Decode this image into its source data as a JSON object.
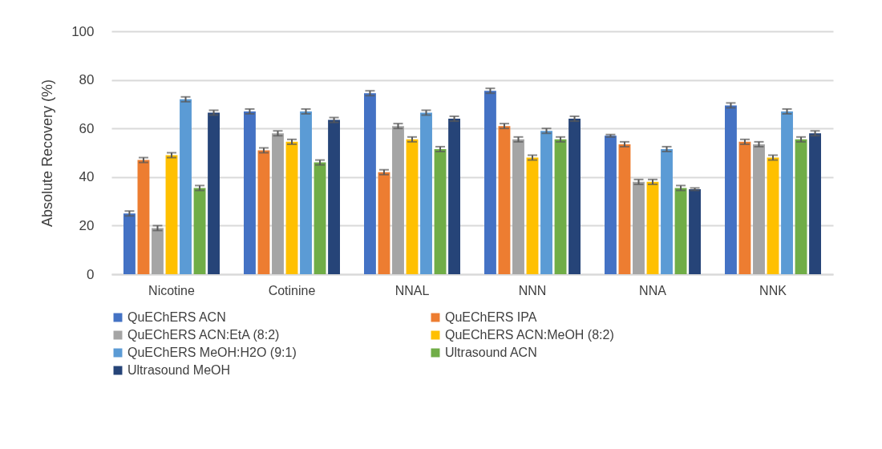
{
  "chart_data": {
    "type": "bar",
    "ylabel": "Absolute Recovery (%)",
    "categories": [
      "Nicotine",
      "Cotinine",
      "NNAL",
      "NNN",
      "NNA",
      "NNK"
    ],
    "ylim": [
      0,
      100
    ],
    "yticks": [
      0,
      20,
      40,
      60,
      80,
      100
    ],
    "grid": "y",
    "legend": "bottom",
    "series": [
      {
        "name": "QuEChERS  ACN",
        "color": "#4472c4",
        "values": [
          25,
          67,
          74.5,
          75.5,
          57,
          69.5
        ],
        "errors": [
          1,
          1,
          1,
          1,
          0.5,
          1
        ]
      },
      {
        "name": "QuEChERS  IPA",
        "color": "#ed7d31",
        "values": [
          47,
          51,
          42,
          61,
          53.5,
          54.5
        ],
        "errors": [
          1,
          1,
          1,
          1,
          1,
          1
        ]
      },
      {
        "name": "QuEChERS  ACN:EtA (8:2)",
        "color": "#a5a5a5",
        "values": [
          19,
          58,
          61,
          55.5,
          38,
          53.5
        ],
        "errors": [
          1,
          1,
          1,
          1,
          1,
          1
        ]
      },
      {
        "name": "QuEChERS  ACN:MeOH (8:2)",
        "color": "#ffc000",
        "values": [
          49,
          54.5,
          55.5,
          48,
          38,
          48
        ],
        "errors": [
          1,
          1,
          1,
          1,
          1,
          1
        ]
      },
      {
        "name": "QuEChERS  MeOH:H2O (9:1)",
        "color": "#5b9bd5",
        "values": [
          72,
          67,
          66.5,
          59,
          51.5,
          67
        ],
        "errors": [
          1,
          1,
          1,
          1,
          1,
          1
        ]
      },
      {
        "name": "Ultrasound  ACN",
        "color": "#70ad47",
        "values": [
          35.5,
          46,
          51.5,
          55.5,
          35.5,
          55.5
        ],
        "errors": [
          1,
          1,
          1,
          1,
          1,
          1
        ]
      },
      {
        "name": "Ultrasound  MeOH",
        "color": "#264478",
        "values": [
          66.5,
          63.5,
          64,
          64,
          35,
          58
        ],
        "errors": [
          1,
          1,
          1,
          1,
          0.5,
          1
        ]
      }
    ]
  }
}
